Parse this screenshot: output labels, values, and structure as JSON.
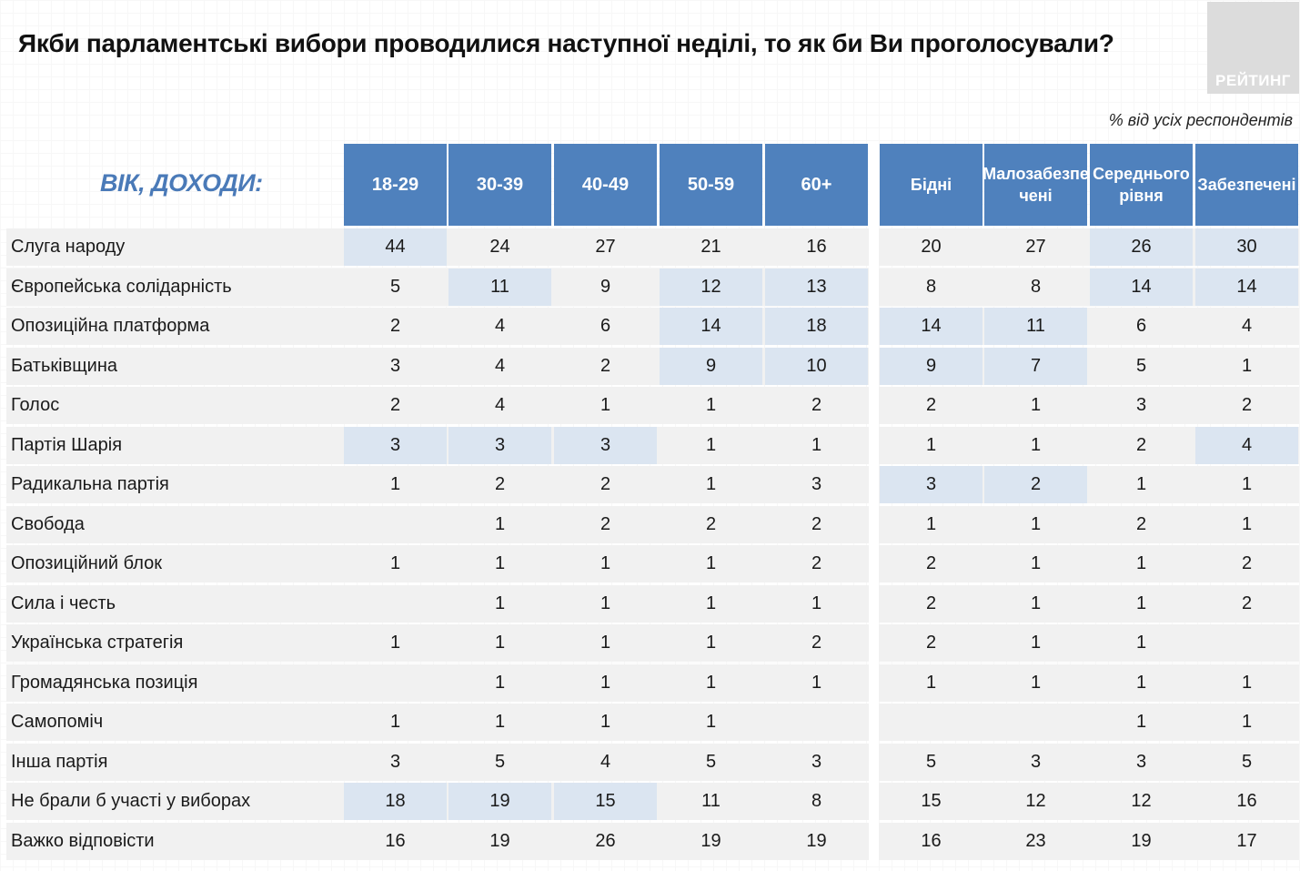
{
  "title": "Якби парламентські вибори проводилися наступної неділі, то як би Ви проголосували?",
  "logo_text": "РЕЙТИНГ",
  "note": "% від усіх респондентів",
  "colors": {
    "header": "#4f81bd",
    "highlight": "#dbe5f1",
    "row": "#f1f1f1",
    "corner_label": "#4a7ab8"
  },
  "chart_data": {
    "type": "table",
    "title": "Якби парламентські вибори проводилися наступної неділі, то як би Ви проголосували?",
    "corner_label": "ВІК, ДОХОДИ:",
    "columns": [
      "18-29",
      "30-39",
      "40-49",
      "50-59",
      "60+",
      "Бідні",
      "Малозабезпе чені",
      "Середнього рівня",
      "Забезпечені"
    ],
    "rows": [
      {
        "label": "Слуга народу",
        "values": [
          "44",
          "24",
          "27",
          "21",
          "16",
          "20",
          "27",
          "26",
          "30"
        ],
        "highlight": [
          0,
          7,
          8
        ]
      },
      {
        "label": "Європейська солідарність",
        "values": [
          "5",
          "11",
          "9",
          "12",
          "13",
          "8",
          "8",
          "14",
          "14"
        ],
        "highlight": [
          1,
          3,
          4,
          7,
          8
        ]
      },
      {
        "label": "Опозиційна платформа",
        "values": [
          "2",
          "4",
          "6",
          "14",
          "18",
          "14",
          "11",
          "6",
          "4"
        ],
        "highlight": [
          3,
          4,
          5,
          6
        ]
      },
      {
        "label": "Батьківщина",
        "values": [
          "3",
          "4",
          "2",
          "9",
          "10",
          "9",
          "7",
          "5",
          "1"
        ],
        "highlight": [
          3,
          4,
          5,
          6
        ]
      },
      {
        "label": "Голос",
        "values": [
          "2",
          "4",
          "1",
          "1",
          "2",
          "2",
          "1",
          "3",
          "2"
        ],
        "highlight": []
      },
      {
        "label": "Партія Шарія",
        "values": [
          "3",
          "3",
          "3",
          "1",
          "1",
          "1",
          "1",
          "2",
          "4"
        ],
        "highlight": [
          0,
          1,
          2,
          8
        ]
      },
      {
        "label": "Радикальна партія",
        "values": [
          "1",
          "2",
          "2",
          "1",
          "3",
          "3",
          "2",
          "1",
          "1"
        ],
        "highlight": [
          5,
          6
        ]
      },
      {
        "label": "Свобода",
        "values": [
          "",
          "1",
          "2",
          "2",
          "2",
          "1",
          "1",
          "2",
          "1"
        ],
        "highlight": []
      },
      {
        "label": "Опозиційний блок",
        "values": [
          "1",
          "1",
          "1",
          "1",
          "2",
          "2",
          "1",
          "1",
          "2"
        ],
        "highlight": []
      },
      {
        "label": "Сила і честь",
        "values": [
          "",
          "1",
          "1",
          "1",
          "1",
          "2",
          "1",
          "1",
          "2"
        ],
        "highlight": []
      },
      {
        "label": "Українська стратегія",
        "values": [
          "1",
          "1",
          "1",
          "1",
          "2",
          "2",
          "1",
          "1",
          ""
        ],
        "highlight": []
      },
      {
        "label": "Громадянська позиція",
        "values": [
          "",
          "1",
          "1",
          "1",
          "1",
          "1",
          "1",
          "1",
          "1"
        ],
        "highlight": []
      },
      {
        "label": "Самопоміч",
        "values": [
          "1",
          "1",
          "1",
          "1",
          "",
          "",
          "",
          "1",
          "1"
        ],
        "highlight": []
      },
      {
        "label": "Інша партія",
        "values": [
          "3",
          "5",
          "4",
          "5",
          "3",
          "5",
          "3",
          "3",
          "5"
        ],
        "highlight": []
      },
      {
        "label": "Не брали б участі у виборах",
        "values": [
          "18",
          "19",
          "15",
          "11",
          "8",
          "15",
          "12",
          "12",
          "16"
        ],
        "highlight": [
          0,
          1,
          2
        ]
      },
      {
        "label": "Важко відповісти",
        "values": [
          "16",
          "19",
          "26",
          "19",
          "19",
          "16",
          "23",
          "19",
          "17"
        ],
        "highlight": []
      }
    ]
  }
}
